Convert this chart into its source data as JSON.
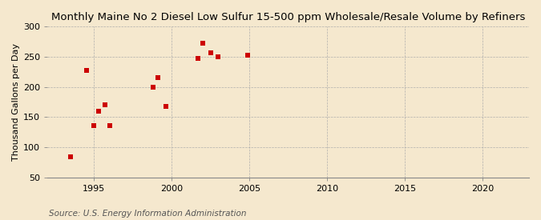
{
  "title": "Monthly Maine No 2 Diesel Low Sulfur 15-500 ppm Wholesale/Resale Volume by Refiners",
  "ylabel": "Thousand Gallons per Day",
  "source": "Source: U.S. Energy Information Administration",
  "x_data": [
    1993.5,
    1994.5,
    1995.0,
    1995.3,
    1995.7,
    1996.0,
    1998.8,
    1999.1,
    1999.6,
    2001.7,
    2002.0,
    2002.5,
    2003.0,
    2004.9
  ],
  "y_data": [
    84,
    228,
    136,
    160,
    170,
    136,
    200,
    215,
    168,
    247,
    272,
    257,
    250,
    253
  ],
  "marker_color": "#cc0000",
  "marker_size": 18,
  "xlim": [
    1992,
    2023
  ],
  "ylim": [
    50,
    300
  ],
  "xticks": [
    1995,
    2000,
    2005,
    2010,
    2015,
    2020
  ],
  "yticks": [
    50,
    100,
    150,
    200,
    250,
    300
  ],
  "background_color": "#f5e8ce",
  "grid_color": "#aaaaaa",
  "title_fontsize": 9.5,
  "tick_fontsize": 8,
  "ylabel_fontsize": 8,
  "source_fontsize": 7.5
}
